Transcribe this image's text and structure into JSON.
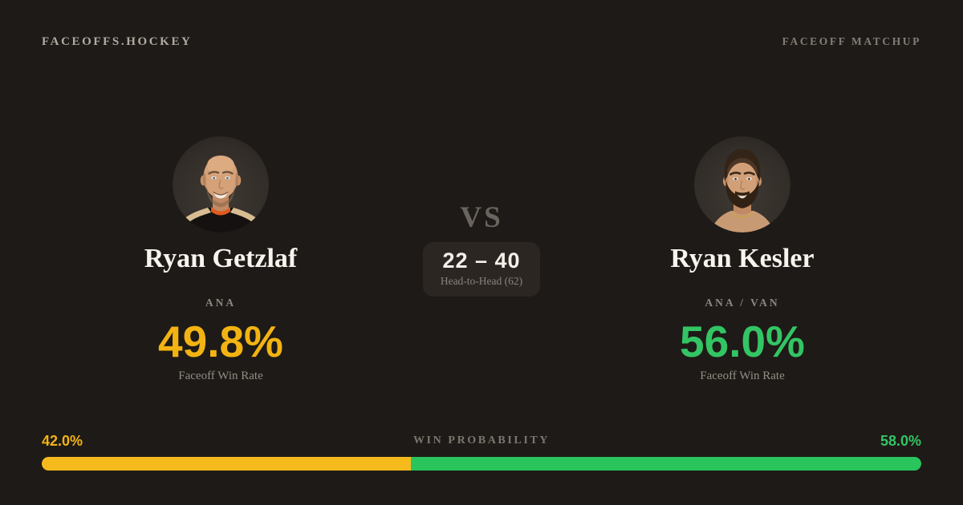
{
  "header": {
    "brand": "FACEOFFS.HOCKEY",
    "page_label": "FACEOFF MATCHUP"
  },
  "players": {
    "left": {
      "name": "Ryan Getzlaf",
      "team": "ANA",
      "win_rate": "49.8%",
      "win_rate_label": "Faceoff Win Rate",
      "accent_color": "#f2b313",
      "avatar": "ryan-getzlaf-headshot"
    },
    "right": {
      "name": "Ryan Kesler",
      "team": "ANA / VAN",
      "win_rate": "56.0%",
      "win_rate_label": "Faceoff Win Rate",
      "accent_color": "#33c464",
      "avatar": "ryan-kesler-headshot"
    }
  },
  "matchup": {
    "vs_label": "VS",
    "head_to_head_score": "22 – 40",
    "head_to_head_label": "Head-to-Head (62)"
  },
  "win_probability": {
    "label": "WIN PROBABILITY",
    "left": {
      "pct_label": "42.0%",
      "value": 42.0,
      "color": "#f7ba1d"
    },
    "right": {
      "pct_label": "58.0%",
      "value": 58.0,
      "color": "#29c45c"
    }
  },
  "theme": {
    "background": "#1e1a17",
    "card_background": "#2b2622",
    "avatar_background": "#332e29",
    "text_primary": "#f7f3ed",
    "text_muted": "#8d8680"
  }
}
